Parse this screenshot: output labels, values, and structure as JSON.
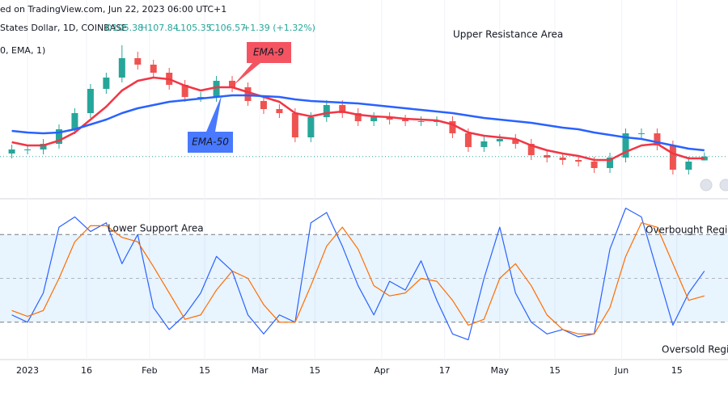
{
  "chart_data": [
    {
      "type": "candlestick",
      "title": "ed on TradingView.com, Jun 22, 2023 06:00 UTC+1",
      "subtitle": "States Dollar, 1D, COINBASE",
      "ohlc": [
        "O105.38",
        "H107.84",
        "L105.35",
        "C106.57",
        "+1.39 (+1.32%)"
      ],
      "indicator_legend": "0, EMA, 1)",
      "annotations": [
        "Upper Resistance Area"
      ],
      "x": [
        -4,
        0,
        4,
        8,
        12,
        16,
        20,
        24,
        28,
        32,
        36,
        40,
        44,
        48,
        52,
        56,
        60,
        64,
        68,
        72,
        76,
        80,
        84,
        88,
        92,
        96,
        100,
        104,
        108,
        112,
        116,
        120,
        124,
        128,
        132,
        136,
        140,
        144,
        148,
        152,
        156,
        160,
        164,
        168,
        172
      ],
      "open": [
        107.5,
        108.75,
        108.75,
        110.5,
        115,
        120,
        127.5,
        131,
        137,
        135,
        132.5,
        128.75,
        125,
        125,
        130,
        128,
        123.75,
        121.25,
        120,
        112.5,
        118.75,
        122.5,
        120,
        117.5,
        118.75,
        118,
        117.5,
        117.5,
        117.5,
        113.75,
        109.5,
        111.25,
        112,
        110.5,
        107,
        106.25,
        105.5,
        105,
        103,
        106.25,
        113.75,
        113.75,
        110,
        102.5,
        105.38
      ],
      "high": [
        110.25,
        110.25,
        112,
        116.5,
        121.5,
        129,
        132.5,
        141,
        139,
        136.5,
        134,
        130.25,
        126.5,
        131.5,
        131.5,
        129.5,
        125.25,
        122.75,
        121.5,
        120.25,
        124,
        124,
        121.5,
        120.25,
        120.25,
        119.5,
        119,
        119,
        119,
        115.25,
        112.75,
        113.5,
        113.5,
        112,
        108.5,
        107.75,
        107,
        106.5,
        107.75,
        115.25,
        115.25,
        115.25,
        111.5,
        106.5,
        107.84
      ],
      "low": [
        106,
        107.25,
        107.25,
        109,
        113.5,
        118.5,
        126,
        129.5,
        133.5,
        131,
        127.25,
        123.5,
        123.5,
        123.5,
        126.5,
        122.25,
        119.75,
        118.5,
        111,
        111,
        117.25,
        118.5,
        116,
        116,
        116.5,
        116,
        116,
        116,
        112.25,
        108,
        108,
        109.75,
        109,
        105.5,
        104.75,
        104,
        103.5,
        101.5,
        101.5,
        104.75,
        112.25,
        108.5,
        101,
        101,
        105.35
      ],
      "close": [
        108.75,
        108.75,
        110.5,
        115,
        120,
        127.5,
        131,
        137,
        135,
        132.5,
        128.75,
        125,
        125,
        130,
        128,
        123.75,
        121.25,
        120,
        112.5,
        118.75,
        122.5,
        120,
        117.5,
        118.75,
        118,
        117.5,
        117.5,
        117.5,
        113.75,
        109.5,
        111.25,
        112,
        110.5,
        107,
        106.25,
        105.5,
        105,
        103,
        106.25,
        113.75,
        113.75,
        110,
        102.5,
        105,
        106.57
      ],
      "up_color": "#26a69a",
      "down_color": "#ef5350",
      "series": [
        {
          "name": "EMA-9",
          "color": "#f23645",
          "values": [
            111,
            110,
            110,
            111.5,
            114,
            118,
            122,
            127,
            130,
            131,
            130.5,
            128.5,
            127,
            128,
            128,
            126.5,
            125,
            123.5,
            120,
            119,
            120,
            120.5,
            119.5,
            119,
            118.75,
            118.25,
            118,
            117.75,
            116.5,
            114,
            113,
            112.5,
            112,
            110,
            108.5,
            107.5,
            106.75,
            105.5,
            105.5,
            108,
            110,
            110.5,
            107.5,
            106,
            106
          ]
        },
        {
          "name": "EMA-50",
          "color": "#2962ff",
          "values": [
            114.5,
            114,
            113.75,
            114,
            115,
            116.5,
            118,
            120,
            121.5,
            122.5,
            123.5,
            124,
            124.5,
            125,
            125.5,
            125.5,
            125.25,
            125,
            124.25,
            123.75,
            123.5,
            123.25,
            123,
            122.5,
            122,
            121.5,
            121,
            120.5,
            120,
            119.25,
            118.5,
            118,
            117.5,
            117,
            116.25,
            115.5,
            115,
            114,
            113.25,
            112.5,
            112,
            111,
            110,
            109,
            108.5
          ]
        }
      ],
      "xlim": [
        -7,
        178
      ],
      "ylim": [
        95,
        150
      ]
    },
    {
      "type": "line",
      "annotations": [
        "Lower Support Area",
        "Overbought Region",
        "Oversold Region"
      ],
      "x": [
        -4,
        0,
        4,
        8,
        12,
        16,
        20,
        24,
        28,
        32,
        36,
        40,
        44,
        48,
        52,
        56,
        60,
        64,
        68,
        72,
        76,
        80,
        84,
        88,
        92,
        96,
        100,
        104,
        108,
        112,
        116,
        120,
        124,
        128,
        132,
        136,
        140,
        144,
        148,
        152,
        156,
        160,
        164,
        168,
        172
      ],
      "series": [
        {
          "color": "#2962ff",
          "values": [
            25,
            20,
            40,
            85,
            92,
            82,
            88,
            60,
            80,
            30,
            15,
            25,
            40,
            65,
            55,
            25,
            12,
            25,
            20,
            88,
            95,
            72,
            45,
            25,
            48,
            42,
            62,
            35,
            12,
            8,
            50,
            85,
            40,
            20,
            12,
            15,
            10,
            12,
            70,
            98,
            92,
            55,
            18,
            40,
            55
          ]
        },
        {
          "color": "#ff6d00",
          "values": [
            28,
            24,
            28,
            50,
            75,
            86,
            86,
            78,
            75,
            58,
            40,
            22,
            25,
            42,
            55,
            50,
            32,
            20,
            20,
            45,
            72,
            85,
            70,
            45,
            38,
            40,
            50,
            48,
            35,
            18,
            22,
            50,
            60,
            45,
            25,
            15,
            12,
            12,
            30,
            65,
            88,
            85,
            60,
            35,
            38
          ]
        }
      ],
      "upper_band": 80,
      "middle": 50,
      "lower_band": 20,
      "xlim": [
        -7,
        178
      ],
      "ylim": [
        0,
        100
      ],
      "xticks": [
        {
          "value": 0,
          "label": "2023"
        },
        {
          "value": 15,
          "label": "16"
        },
        {
          "value": 31,
          "label": "Feb"
        },
        {
          "value": 45,
          "label": "15"
        },
        {
          "value": 59,
          "label": "Mar"
        },
        {
          "value": 73,
          "label": "15"
        },
        {
          "value": 90,
          "label": "Apr"
        },
        {
          "value": 106,
          "label": "17"
        },
        {
          "value": 120,
          "label": "May"
        },
        {
          "value": 134,
          "label": "15"
        },
        {
          "value": 151,
          "label": "Jun"
        },
        {
          "value": 165,
          "label": "15"
        }
      ]
    }
  ]
}
